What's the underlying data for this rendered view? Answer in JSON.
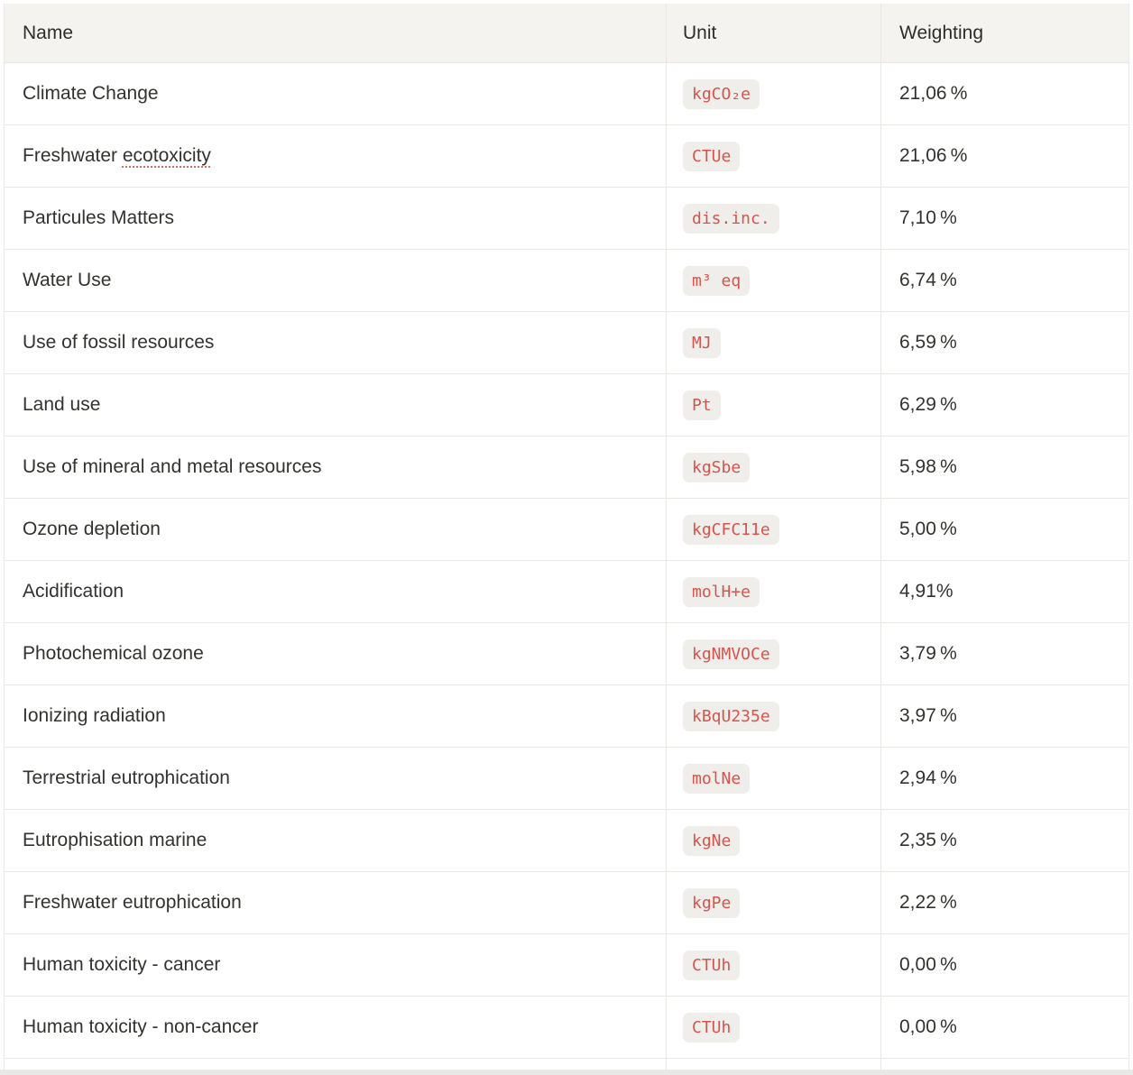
{
  "colors": {
    "header_background": "#f4f3ef",
    "border": "#e9e8e5",
    "text": "#33322e",
    "unit_badge_background": "#efeeeb",
    "unit_badge_text": "#d5554e",
    "spellcheck_underline": "#e0695c",
    "page_bottom_edge": "#e8e8e6"
  },
  "table": {
    "columns": [
      {
        "label": "Name"
      },
      {
        "label": "Unit"
      },
      {
        "label": "Weighting"
      }
    ],
    "rows": [
      {
        "name": "Climate Change",
        "unit": "kgCO₂e",
        "weighting": "21,06 %"
      },
      {
        "name": "Freshwater ecotoxicity",
        "misspelled": "ecotoxicity",
        "unit": "CTUe",
        "weighting": "21,06 %"
      },
      {
        "name": "Particules Matters",
        "unit": "dis.inc.",
        "weighting": "7,10 %"
      },
      {
        "name": "Water Use",
        "unit": "m³ eq",
        "weighting": "6,74 %"
      },
      {
        "name": "Use of fossil resources",
        "unit": "MJ",
        "weighting": "6,59 %"
      },
      {
        "name": "Land use",
        "unit": "Pt",
        "weighting": "6,29 %"
      },
      {
        "name": "Use of mineral and metal resources",
        "unit": "kgSbe",
        "weighting": "5,98 %"
      },
      {
        "name": "Ozone depletion",
        "unit": "kgCFC11e",
        "weighting": "5,00 %"
      },
      {
        "name": "Acidification",
        "unit": "molH+e",
        "weighting": "4,91%"
      },
      {
        "name": "Photochemical ozone",
        "unit": "kgNMVOCe",
        "weighting": "3,79 %"
      },
      {
        "name": "Ionizing radiation",
        "unit": "kBqU235e",
        "weighting": "3,97 %"
      },
      {
        "name": "Terrestrial eutrophication",
        "unit": "molNe",
        "weighting": "2,94 %"
      },
      {
        "name": "Eutrophisation marine",
        "unit": "kgNe",
        "weighting": "2,35 %"
      },
      {
        "name": "Freshwater eutrophication",
        "unit": "kgPe",
        "weighting": "2,22 %"
      },
      {
        "name": "Human toxicity - cancer",
        "unit": "CTUh",
        "weighting": "0,00 %"
      },
      {
        "name": "Human toxicity - non-cancer",
        "unit": "CTUh",
        "weighting": "0,00 %"
      }
    ]
  }
}
